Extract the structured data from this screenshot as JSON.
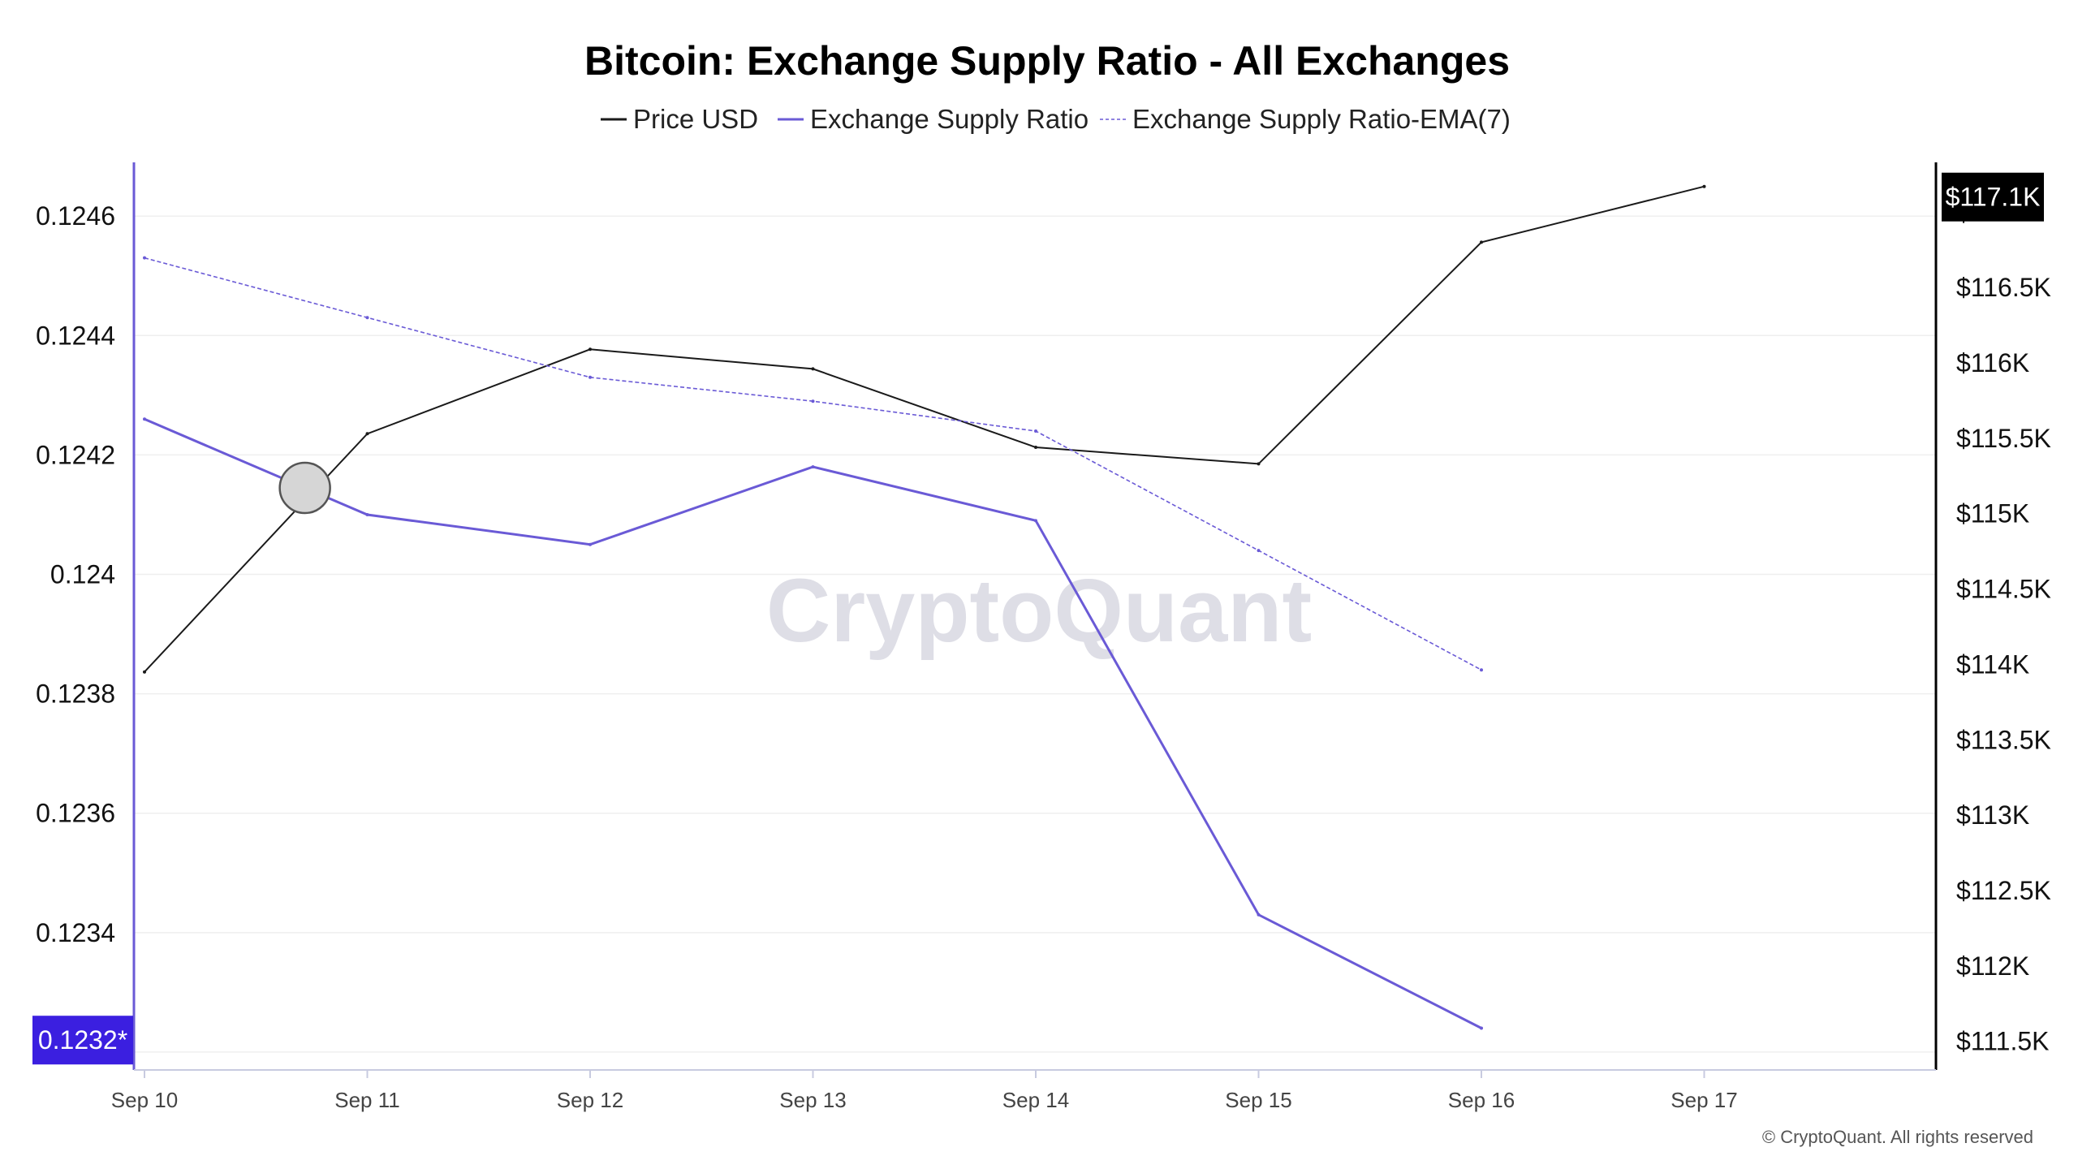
{
  "chart_data": {
    "type": "line",
    "title": "Bitcoin: Exchange Supply Ratio - All Exchanges",
    "legend_position": "top-center",
    "grid": true,
    "categories": [
      "Sep 10",
      "Sep 11",
      "Sep 12",
      "Sep 13",
      "Sep 14",
      "Sep 15",
      "Sep 16",
      "Sep 17"
    ],
    "left_axis": {
      "ticks": [
        "0.1246",
        "0.1244",
        "0.1242",
        "0.124",
        "0.1238",
        "0.1236",
        "0.1234",
        "0.1232"
      ],
      "tick_values": [
        0.1246,
        0.1244,
        0.1242,
        0.124,
        0.1238,
        0.1236,
        0.1234,
        0.1232
      ],
      "range": [
        0.12317,
        0.12469
      ],
      "current_badge": "0.1232*",
      "current_value": 0.12322
    },
    "right_axis": {
      "ticks": [
        "$117K",
        "$116.5K",
        "$116K",
        "$115.5K",
        "$115K",
        "$114.5K",
        "$114K",
        "$113.5K",
        "$113K",
        "$112.5K",
        "$112K",
        "$111.5K"
      ],
      "tick_values": [
        117000,
        116500,
        116000,
        115500,
        115000,
        114500,
        114000,
        113500,
        113000,
        112500,
        112000,
        111500
      ],
      "range": [
        111310,
        117330
      ],
      "current_badge": "$117.1K",
      "current_value": 117100
    },
    "series": [
      {
        "name": "Price USD",
        "axis": "right",
        "color": "#1a1a1a",
        "style": "solid",
        "values": [
          113950,
          115530,
          116090,
          115960,
          115440,
          115330,
          116800,
          117170
        ]
      },
      {
        "name": "Exchange Supply Ratio",
        "axis": "left",
        "color": "#6a5ad6",
        "style": "solid",
        "values": [
          0.12426,
          0.1241,
          0.12405,
          0.12418,
          0.12409,
          0.12343,
          0.12324,
          null
        ]
      },
      {
        "name": "Exchange Supply Ratio-EMA(7)",
        "axis": "left",
        "color": "#6a5ad6",
        "style": "dashed",
        "values": [
          0.12453,
          0.12443,
          0.12433,
          0.12429,
          0.12424,
          0.12404,
          0.12384,
          null
        ]
      }
    ],
    "hover_marker": {
      "x": 0.72,
      "series": "Exchange Supply Ratio"
    }
  },
  "watermark": "CryptoQuant",
  "copyright": "© CryptoQuant. All rights reserved",
  "colors": {
    "left_axis": "#6a5ad6",
    "left_badge": "#3b1fe0",
    "right_axis": "#000000",
    "right_badge": "#000000",
    "grid": "#efefef"
  }
}
